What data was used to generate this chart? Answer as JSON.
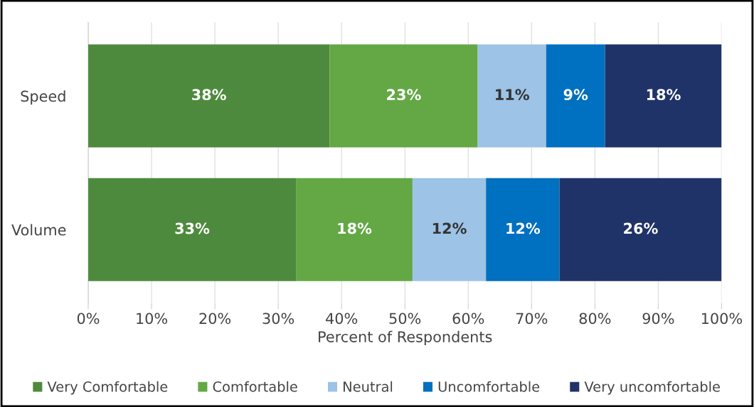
{
  "chart_data": {
    "type": "bar",
    "orientation": "horizontal",
    "stacked": true,
    "categories": [
      "Speed",
      "Volume"
    ],
    "series": [
      {
        "name": "Very Comfortable",
        "color": "#4e8a3e",
        "values": [
          38.1,
          32.8
        ],
        "value_labels": [
          "38%",
          "33%"
        ]
      },
      {
        "name": "Comfortable",
        "color": "#63a845",
        "values": [
          23.4,
          18.4
        ],
        "value_labels": [
          "23%",
          "18%"
        ]
      },
      {
        "name": "Neutral",
        "color": "#9dc3e6",
        "values": [
          10.8,
          11.6
        ],
        "value_labels": [
          "11%",
          "12%"
        ]
      },
      {
        "name": "Uncomfortable",
        "color": "#0070c0",
        "values": [
          9.3,
          11.6
        ],
        "value_labels": [
          "9%",
          "12%"
        ]
      },
      {
        "name": "Very uncomfortable",
        "color": "#1f3368",
        "values": [
          18.4,
          25.6
        ],
        "value_labels": [
          "18%",
          "26%"
        ]
      }
    ],
    "xlabel": "Percent of Respondents",
    "xlim": [
      0,
      100
    ],
    "xticks": [
      {
        "value": 0,
        "label": "0%"
      },
      {
        "value": 10,
        "label": "10%"
      },
      {
        "value": 20,
        "label": "20%"
      },
      {
        "value": 30,
        "label": "30%"
      },
      {
        "value": 40,
        "label": "40%"
      },
      {
        "value": 50,
        "label": "50%"
      },
      {
        "value": 60,
        "label": "60%"
      },
      {
        "value": 70,
        "label": "70%"
      },
      {
        "value": 80,
        "label": "80%"
      },
      {
        "value": 90,
        "label": "90%"
      },
      {
        "value": 100,
        "label": "100%"
      }
    ],
    "grid": "x",
    "legend": "bottom"
  }
}
